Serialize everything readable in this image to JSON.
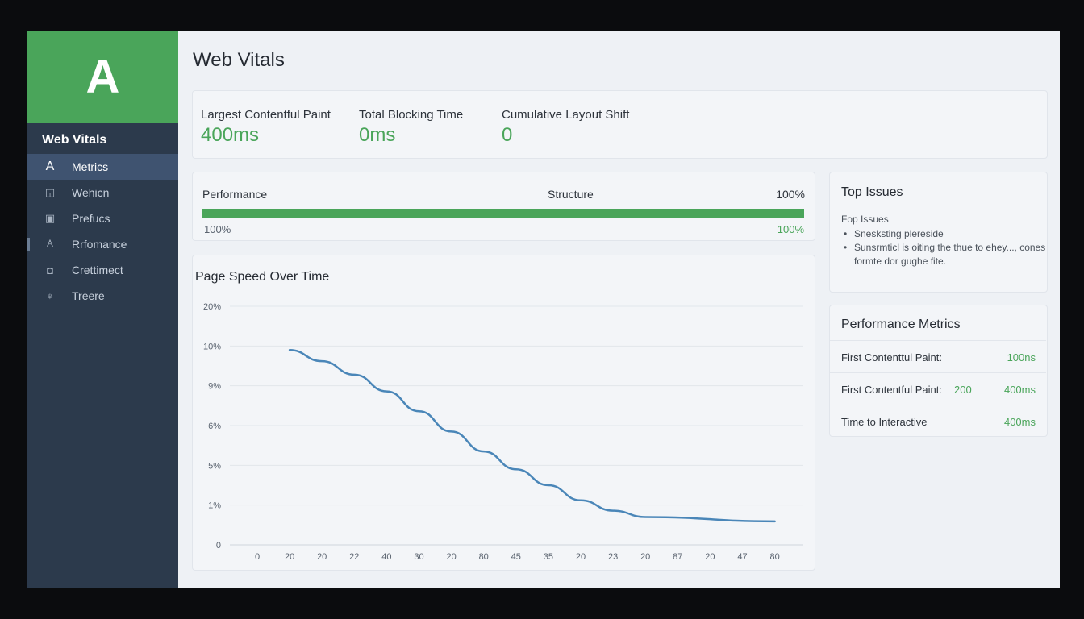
{
  "logo": {
    "letter": "A"
  },
  "sidebar": {
    "title": "Web Vitals",
    "items": [
      {
        "label": "Metrics",
        "icon": "A",
        "icon_name": "letter-a-icon",
        "active": true
      },
      {
        "label": "Wehicn",
        "icon": "◲",
        "icon_name": "chart-icon",
        "active": false
      },
      {
        "label": "Prefucs",
        "icon": "▣",
        "icon_name": "box-icon",
        "active": false
      },
      {
        "label": "Rrfomance",
        "icon": "♙",
        "icon_name": "user-icon",
        "active": false
      },
      {
        "label": "Crettimect",
        "icon": "◘",
        "icon_name": "shield-icon",
        "active": false
      },
      {
        "label": "Treere",
        "icon": "♆",
        "icon_name": "tree-icon",
        "active": false
      }
    ]
  },
  "page": {
    "title": "Web Vitals"
  },
  "kpis": [
    {
      "label": "Largest Contentful Paint",
      "value": "400ms"
    },
    {
      "label": "Total Blocking Time",
      "value": "0ms"
    },
    {
      "label": "Cumulative Layout Shift",
      "value": "0"
    }
  ],
  "performance": {
    "label": "Performance",
    "center_label": "Structure",
    "right_value": "100%",
    "progress": 100,
    "left_bottom": "100%",
    "right_bottom": "100%",
    "accent": "#4aa55a"
  },
  "chart_title": "Page Speed Over Time",
  "chart_data": {
    "type": "line",
    "title": "Page Speed Over Time",
    "y_tick_labels": [
      "0",
      "1%",
      "5%",
      "6%",
      "9%",
      "10%",
      "20%"
    ],
    "x_tick_labels": [
      "0",
      "20",
      "20",
      "22",
      "40",
      "30",
      "20",
      "80",
      "45",
      "35",
      "20",
      "23",
      "20",
      "87",
      "20",
      "47",
      "80"
    ],
    "series": [
      {
        "color": "#4a86b8",
        "y_level": [
          4.9,
          4.62,
          4.28,
          3.86,
          3.36,
          2.85,
          2.35,
          1.9,
          1.5,
          1.12,
          0.86,
          0.7,
          0.59
        ],
        "x_index": [
          1,
          2,
          3,
          4,
          5,
          6,
          7,
          8,
          9,
          10,
          11,
          12,
          16
        ]
      }
    ],
    "grid": true,
    "legend": "none"
  },
  "top_issues": {
    "title": "Top Issues",
    "subtitle": "Fop Issues",
    "items": [
      "Snesksting plereside",
      "Sunsrmticl is oiting the thue to ehey..., cones formte dor gughe fite."
    ]
  },
  "perf_metrics": {
    "title": "Performance Metrics",
    "rows": [
      {
        "label": "First Contenttul Paint:",
        "mid": "",
        "value": "100ns"
      },
      {
        "label": "First Contentful Paint:",
        "mid": "200",
        "value": "400ms"
      },
      {
        "label": "Time to Interactive",
        "mid": "",
        "value": "400ms"
      }
    ]
  }
}
